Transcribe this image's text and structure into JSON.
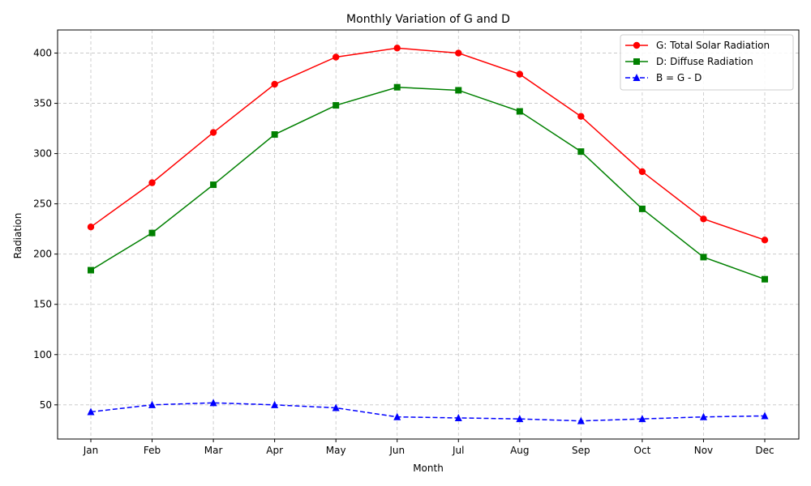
{
  "chart_data": {
    "type": "line",
    "title": "Monthly Variation of G and D",
    "xlabel": "Month",
    "ylabel": "Radiation",
    "categories": [
      "Jan",
      "Feb",
      "Mar",
      "Apr",
      "May",
      "Jun",
      "Jul",
      "Aug",
      "Sep",
      "Oct",
      "Nov",
      "Dec"
    ],
    "ylim": [
      16,
      423
    ],
    "yticks": [
      50,
      100,
      150,
      200,
      250,
      300,
      350,
      400
    ],
    "grid": true,
    "legend_position": "top-right",
    "series": [
      {
        "name": "G: Total Solar Radiation",
        "color": "#ff0000",
        "marker": "circle",
        "line_style": "solid",
        "values": [
          227,
          271,
          321,
          369,
          396,
          405,
          400,
          379,
          337,
          282,
          235,
          214
        ]
      },
      {
        "name": "D: Diffuse Radiation",
        "color": "#008000",
        "marker": "square",
        "line_style": "solid",
        "values": [
          184,
          221,
          269,
          319,
          348,
          366,
          363,
          342,
          302,
          245,
          197,
          175
        ]
      },
      {
        "name": "B = G - D",
        "color": "#0000ff",
        "marker": "triangle",
        "line_style": "dashed",
        "values": [
          43,
          50,
          52,
          50,
          47,
          38,
          37,
          36,
          34,
          36,
          38,
          39
        ]
      }
    ]
  }
}
